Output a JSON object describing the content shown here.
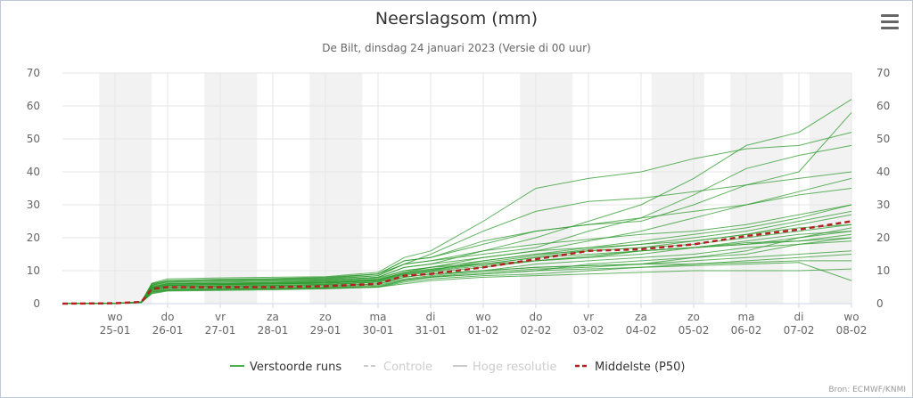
{
  "chart_data": {
    "type": "line",
    "title": "Neerslagsom (mm)",
    "subtitle": "De Bilt, dinsdag 24 januari 2023 (Versie di 00 uur)",
    "credit": "Bron: ECMWF/KNMI",
    "ylim": [
      0,
      70
    ],
    "yticks": [
      0,
      10,
      20,
      30,
      40,
      50,
      60,
      70
    ],
    "xlim": [
      0,
      15
    ],
    "xticks": [
      {
        "x": 1,
        "day": "wo",
        "date": "25-01"
      },
      {
        "x": 2,
        "day": "do",
        "date": "26-01"
      },
      {
        "x": 3,
        "day": "vr",
        "date": "27-01"
      },
      {
        "x": 4,
        "day": "za",
        "date": "28-01"
      },
      {
        "x": 5,
        "day": "zo",
        "date": "29-01"
      },
      {
        "x": 6,
        "day": "ma",
        "date": "30-01"
      },
      {
        "x": 7,
        "day": "di",
        "date": "31-01"
      },
      {
        "x": 8,
        "day": "wo",
        "date": "01-02"
      },
      {
        "x": 9,
        "day": "do",
        "date": "02-02"
      },
      {
        "x": 10,
        "day": "vr",
        "date": "03-02"
      },
      {
        "x": 11,
        "day": "za",
        "date": "04-02"
      },
      {
        "x": 12,
        "day": "zo",
        "date": "05-02"
      },
      {
        "x": 13,
        "day": "ma",
        "date": "06-02"
      },
      {
        "x": 14,
        "day": "di",
        "date": "07-02"
      },
      {
        "x": 15,
        "day": "wo",
        "date": "08-02"
      }
    ],
    "weekend_bands": [
      [
        0.7,
        1.7
      ],
      [
        2.7,
        3.7
      ],
      [
        4.7,
        5.7
      ],
      [
        8.7,
        9.7
      ],
      [
        11.2,
        12.2
      ],
      [
        12.7,
        13.7
      ],
      [
        14.2,
        15.0
      ]
    ],
    "legend": [
      {
        "name": "Verstoorde runs",
        "color": "#4caf50",
        "style": "solid",
        "active": true
      },
      {
        "name": "Controle",
        "color": "#cccccc",
        "style": "dashed",
        "active": false
      },
      {
        "name": "Hoge resolutie",
        "color": "#cccccc",
        "style": "solid",
        "active": false
      },
      {
        "name": "Middelste (P50)",
        "color": "#b22222",
        "style": "dashed",
        "active": true
      }
    ],
    "x": [
      0,
      1,
      1.5,
      1.7,
      2,
      3,
      4,
      5,
      6,
      6.5,
      7,
      8,
      9,
      10,
      11,
      12,
      13,
      14,
      15
    ],
    "series_median": {
      "name": "Middelste (P50)",
      "color": "#b22222",
      "values": [
        0,
        0.1,
        0.5,
        4.5,
        5,
        5,
        5,
        5.3,
        6,
        8.5,
        9,
        11,
        13.5,
        16,
        16.5,
        18,
        20.5,
        22.5,
        25
      ]
    },
    "series_runs": [
      {
        "values": [
          0,
          0.1,
          0.4,
          5.5,
          6.8,
          7.2,
          7.4,
          7.6,
          9,
          12,
          13,
          16,
          18,
          19.5,
          21,
          22,
          24,
          27,
          30
        ]
      },
      {
        "values": [
          0,
          0.1,
          0.3,
          3,
          3.8,
          4,
          4.2,
          4.5,
          5,
          7,
          8,
          9,
          10,
          12,
          13,
          14,
          16,
          20,
          23
        ]
      },
      {
        "values": [
          0,
          0.1,
          0.5,
          5,
          6,
          6.2,
          6.5,
          7,
          8,
          11,
          12,
          16,
          20,
          25,
          30,
          38,
          48,
          52,
          62
        ]
      },
      {
        "values": [
          0,
          0.1,
          0.4,
          4,
          5,
          5.3,
          5.5,
          5.8,
          6.5,
          8,
          9,
          10,
          11,
          11.5,
          12,
          14,
          15,
          18,
          20
        ]
      },
      {
        "values": [
          0,
          0.1,
          0.5,
          6,
          7,
          7.4,
          7.6,
          8,
          9,
          13,
          14,
          19,
          22,
          24,
          25,
          30,
          36,
          40,
          58
        ]
      },
      {
        "values": [
          0,
          0.1,
          0.3,
          3.5,
          4,
          4.3,
          4.5,
          4.7,
          5,
          6,
          7,
          8,
          8.5,
          9,
          9.5,
          10,
          10,
          10,
          10.5
        ]
      },
      {
        "values": [
          0,
          0.1,
          0.5,
          5,
          6,
          6.1,
          6.3,
          6.6,
          7.5,
          10,
          11,
          14,
          16,
          17,
          18,
          20,
          22,
          25,
          28
        ]
      },
      {
        "values": [
          0,
          0.1,
          0.4,
          4.5,
          5.5,
          5.7,
          6,
          6.2,
          7,
          9,
          10,
          13,
          15,
          16,
          17,
          19,
          21,
          23,
          24
        ]
      },
      {
        "values": [
          0,
          0.1,
          0.5,
          5.8,
          6.5,
          6.9,
          7.2,
          7.5,
          8.5,
          12,
          13,
          15,
          17,
          22,
          26,
          33,
          41,
          45,
          48
        ]
      },
      {
        "values": [
          0,
          0.1,
          0.4,
          4,
          4.8,
          5,
          5.2,
          5.5,
          6,
          7.5,
          8.5,
          10,
          12,
          13,
          14,
          15,
          17,
          18,
          19
        ]
      },
      {
        "values": [
          0,
          0.1,
          0.3,
          3.2,
          4,
          4.2,
          4.4,
          4.6,
          5,
          6.5,
          7.5,
          8.5,
          9,
          10,
          11,
          12,
          13,
          14,
          15
        ]
      },
      {
        "values": [
          0,
          0.1,
          0.5,
          6.2,
          7.5,
          7.8,
          8,
          8.2,
          9.5,
          14,
          16,
          25,
          35,
          38,
          40,
          44,
          47,
          48,
          52
        ]
      },
      {
        "values": [
          0,
          0.1,
          0.4,
          4.8,
          5.5,
          5.8,
          6,
          6.3,
          7,
          9.5,
          11,
          13,
          15,
          17,
          19,
          21,
          23,
          26,
          30
        ]
      },
      {
        "values": [
          0,
          0.1,
          0.4,
          5,
          6,
          6.2,
          6.4,
          6.8,
          7.8,
          10,
          11,
          12,
          13,
          14,
          16,
          17,
          19,
          21,
          22
        ]
      },
      {
        "values": [
          0,
          0.1,
          0.3,
          3.8,
          4.5,
          4.7,
          5,
          5.2,
          6,
          8,
          9,
          10,
          11,
          11.5,
          12,
          12,
          12.5,
          13,
          13
        ]
      },
      {
        "values": [
          0,
          0.1,
          0.5,
          5.5,
          6.5,
          6.8,
          7,
          7.3,
          8.5,
          12,
          15,
          22,
          28,
          31,
          32,
          34,
          36,
          38,
          40
        ]
      },
      {
        "values": [
          0,
          0.1,
          0.4,
          4.2,
          5,
          5.2,
          5.4,
          5.7,
          6.5,
          8.5,
          9.5,
          11,
          13,
          14,
          15,
          17,
          18,
          20,
          22
        ]
      },
      {
        "values": [
          0,
          0.1,
          0.4,
          4.6,
          5.5,
          5.7,
          5.9,
          6.2,
          7,
          9,
          10,
          12,
          14,
          16,
          17,
          18,
          20,
          22,
          24
        ]
      },
      {
        "values": [
          0,
          0.1,
          0.3,
          3.5,
          4.2,
          4.4,
          4.6,
          4.8,
          5.3,
          7,
          8,
          9,
          10,
          10.5,
          11,
          11.5,
          12,
          12.5,
          7
        ]
      },
      {
        "values": [
          0,
          0.1,
          0.5,
          6,
          7,
          7.3,
          7.5,
          7.8,
          9,
          13,
          14,
          18,
          22,
          24,
          26,
          28,
          30,
          33,
          35
        ]
      },
      {
        "values": [
          0,
          0.1,
          0.4,
          5,
          5.8,
          6,
          6.2,
          6.5,
          7.3,
          9.5,
          10.5,
          12,
          14,
          15,
          16,
          17,
          18.5,
          19,
          20
        ]
      },
      {
        "values": [
          0,
          0.1,
          0.4,
          4.4,
          5.2,
          5.4,
          5.6,
          5.9,
          6.7,
          8.8,
          9.8,
          11.5,
          13,
          14.5,
          16,
          17,
          18,
          19,
          21
        ]
      },
      {
        "values": [
          0,
          0.1,
          0.5,
          5.3,
          6.2,
          6.5,
          6.8,
          7.1,
          8,
          11,
          12,
          14,
          16,
          19,
          22,
          26,
          30,
          34,
          38
        ]
      },
      {
        "values": [
          0,
          0.1,
          0.3,
          3.6,
          4.4,
          4.6,
          4.8,
          5,
          5.6,
          7.2,
          8.2,
          9.5,
          10.5,
          11,
          12,
          13,
          14,
          15,
          16
        ]
      },
      {
        "values": [
          0,
          0.1,
          0.4,
          4.7,
          5.6,
          5.8,
          6,
          6.4,
          7.2,
          9.3,
          10.3,
          12.5,
          14.5,
          16.5,
          18,
          19,
          21,
          24,
          27
        ]
      }
    ]
  }
}
